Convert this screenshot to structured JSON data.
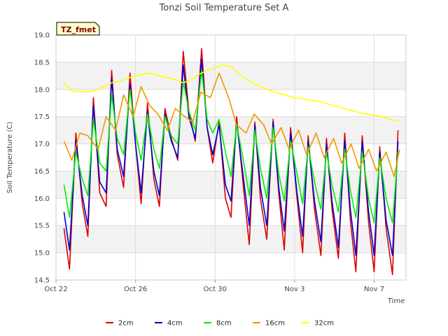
{
  "chart_data": {
    "type": "line",
    "title": "Tonzi Soil Temperature Set A",
    "xlabel": "Time",
    "ylabel": "Soil Temperature (C)",
    "tag": "TZ_fmet",
    "xlim": [
      0,
      44
    ],
    "ylim": [
      14.5,
      19.0
    ],
    "yticks": [
      "14.5",
      "15.0",
      "15.5",
      "16.0",
      "16.5",
      "17.0",
      "17.5",
      "18.0",
      "18.5",
      "19.0"
    ],
    "xticks": [
      {
        "day": 0,
        "label": "Oct 22"
      },
      {
        "day": 10,
        "label": "Oct 26"
      },
      {
        "day": 20,
        "label": "Oct 30"
      },
      {
        "day": 30,
        "label": "Nov 3"
      },
      {
        "day": 40,
        "label": "Nov 7"
      }
    ],
    "grid": true,
    "legend_position": "bottom",
    "series": [
      {
        "name": "2cm",
        "color": "#dd0000",
        "x": [
          1.0,
          1.7,
          2.5,
          3.3,
          4.0,
          4.7,
          5.5,
          6.3,
          7.0,
          7.7,
          8.5,
          9.3,
          10.0,
          10.7,
          11.5,
          12.3,
          13.0,
          13.7,
          14.5,
          15.3,
          16.0,
          16.7,
          17.5,
          18.3,
          19.0,
          19.7,
          20.5,
          21.3,
          22.0,
          22.7,
          23.5,
          24.3,
          25.0,
          25.7,
          26.5,
          27.3,
          28.0,
          28.7,
          29.5,
          30.3,
          31.0,
          31.7,
          32.5,
          33.3,
          34.0,
          34.7,
          35.5,
          36.3,
          37.0,
          37.7,
          38.5,
          39.3,
          40.0,
          40.7,
          41.5,
          42.3,
          43.0
        ],
        "y": [
          15.45,
          14.7,
          17.2,
          15.9,
          15.3,
          17.85,
          16.1,
          15.85,
          18.35,
          16.8,
          16.2,
          18.3,
          17.0,
          15.9,
          17.75,
          16.35,
          15.85,
          17.65,
          17.1,
          16.7,
          18.7,
          17.6,
          17.05,
          18.75,
          17.3,
          16.65,
          17.4,
          16.0,
          15.65,
          17.5,
          16.3,
          15.15,
          17.4,
          16.0,
          15.25,
          17.45,
          16.1,
          15.05,
          17.3,
          16.0,
          15.0,
          17.15,
          15.8,
          14.95,
          17.1,
          15.8,
          14.9,
          17.2,
          15.6,
          14.65,
          17.15,
          15.55,
          14.65,
          16.95,
          15.45,
          14.6,
          17.25
        ]
      },
      {
        "name": "4cm",
        "color": "#0000cc",
        "x": [
          1.0,
          1.7,
          2.5,
          3.3,
          4.0,
          4.7,
          5.5,
          6.3,
          7.0,
          7.7,
          8.5,
          9.3,
          10.0,
          10.7,
          11.5,
          12.3,
          13.0,
          13.7,
          14.5,
          15.3,
          16.0,
          16.7,
          17.5,
          18.3,
          19.0,
          19.7,
          20.5,
          21.3,
          22.0,
          22.7,
          23.5,
          24.3,
          25.0,
          25.7,
          26.5,
          27.3,
          28.0,
          28.7,
          29.5,
          30.3,
          31.0,
          31.7,
          32.5,
          33.3,
          34.0,
          34.7,
          35.5,
          36.3,
          37.0,
          37.7,
          38.5,
          39.3,
          40.0,
          40.7,
          41.5,
          42.3,
          43.0
        ],
        "y": [
          15.75,
          15.05,
          17.05,
          16.05,
          15.5,
          17.7,
          16.3,
          16.1,
          18.2,
          16.9,
          16.4,
          18.1,
          17.0,
          16.1,
          17.6,
          16.5,
          16.05,
          17.55,
          17.05,
          16.75,
          18.45,
          17.5,
          17.1,
          18.55,
          17.3,
          16.8,
          17.35,
          16.25,
          15.95,
          17.4,
          16.45,
          15.5,
          17.35,
          16.2,
          15.5,
          17.4,
          16.2,
          15.4,
          17.2,
          16.1,
          15.3,
          17.05,
          15.95,
          15.2,
          17.0,
          15.95,
          15.1,
          17.05,
          15.8,
          14.95,
          17.05,
          15.75,
          14.95,
          16.85,
          15.6,
          14.95,
          17.05
        ]
      },
      {
        "name": "8cm",
        "color": "#00ee00",
        "x": [
          1.0,
          1.7,
          2.5,
          3.3,
          4.0,
          4.7,
          5.5,
          6.3,
          7.0,
          7.7,
          8.5,
          9.3,
          10.0,
          10.7,
          11.5,
          12.3,
          13.0,
          13.7,
          14.5,
          15.3,
          16.0,
          16.7,
          17.5,
          18.3,
          19.0,
          19.7,
          20.5,
          21.3,
          22.0,
          22.7,
          23.5,
          24.3,
          25.0,
          25.7,
          26.5,
          27.3,
          28.0,
          28.7,
          29.5,
          30.3,
          31.0,
          31.7,
          32.5,
          33.3,
          34.0,
          34.7,
          35.5,
          36.3,
          37.0,
          37.7,
          38.5,
          39.3,
          40.0,
          40.7,
          41.5,
          42.3,
          43.0
        ],
        "y": [
          16.25,
          15.65,
          16.85,
          16.35,
          16.05,
          17.45,
          16.65,
          16.5,
          17.9,
          17.1,
          16.8,
          18.0,
          17.2,
          16.7,
          17.55,
          16.9,
          16.55,
          17.5,
          17.15,
          17.0,
          18.15,
          17.6,
          17.25,
          18.35,
          17.45,
          17.2,
          17.45,
          16.85,
          16.4,
          17.35,
          16.75,
          16.05,
          17.25,
          16.55,
          16.0,
          17.3,
          16.45,
          15.95,
          17.05,
          16.45,
          15.9,
          16.95,
          16.3,
          15.8,
          16.85,
          16.25,
          15.75,
          16.9,
          16.15,
          15.65,
          16.85,
          16.0,
          15.55,
          16.75,
          16.0,
          15.55,
          16.85
        ]
      },
      {
        "name": "16cm",
        "color": "#ee9900",
        "x": [
          1.0,
          2.0,
          3.0,
          4.0,
          5.3,
          6.3,
          7.5,
          8.5,
          9.7,
          10.7,
          11.8,
          12.8,
          14.0,
          15.0,
          16.2,
          17.2,
          18.2,
          19.4,
          20.5,
          21.7,
          22.7,
          23.9,
          24.9,
          26.1,
          27.1,
          28.3,
          29.3,
          30.5,
          31.5,
          32.7,
          33.7,
          34.9,
          35.9,
          37.1,
          38.1,
          39.3,
          40.3,
          41.5,
          42.5,
          43.2
        ],
        "y": [
          17.05,
          16.7,
          17.2,
          17.15,
          16.9,
          17.5,
          17.25,
          17.9,
          17.5,
          18.05,
          17.7,
          17.55,
          17.25,
          17.65,
          17.5,
          17.4,
          17.95,
          17.85,
          18.3,
          17.85,
          17.35,
          17.2,
          17.55,
          17.35,
          17.0,
          17.3,
          16.9,
          17.25,
          16.8,
          17.2,
          16.75,
          17.1,
          16.65,
          17.0,
          16.55,
          16.9,
          16.5,
          16.85,
          16.4,
          16.9
        ]
      },
      {
        "name": "32cm",
        "color": "#ffff00",
        "x": [
          1.0,
          2.0,
          3.0,
          4.0,
          5.0,
          6.0,
          7.0,
          8.0,
          9.0,
          10.0,
          11.0,
          12.0,
          13.0,
          14.0,
          15.0,
          16.0,
          17.0,
          18.0,
          19.0,
          20.0,
          21.0,
          22.0,
          23.0,
          24.0,
          25.0,
          26.0,
          27.0,
          28.0,
          29.0,
          30.0,
          31.0,
          32.0,
          33.0,
          34.0,
          35.0,
          36.0,
          37.0,
          38.0,
          39.0,
          40.0,
          41.0,
          42.0,
          43.0
        ],
        "y": [
          18.12,
          17.97,
          17.96,
          17.96,
          17.98,
          18.05,
          18.12,
          18.15,
          18.2,
          18.25,
          18.28,
          18.3,
          18.25,
          18.22,
          18.18,
          18.12,
          18.18,
          18.28,
          18.35,
          18.4,
          18.45,
          18.42,
          18.3,
          18.18,
          18.1,
          18.03,
          17.98,
          17.93,
          17.89,
          17.85,
          17.83,
          17.8,
          17.78,
          17.74,
          17.7,
          17.66,
          17.62,
          17.58,
          17.55,
          17.53,
          17.5,
          17.45,
          17.42
        ]
      }
    ]
  }
}
